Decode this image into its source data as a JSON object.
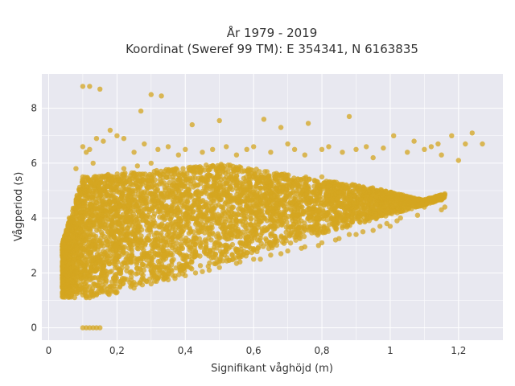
{
  "chart_data": {
    "type": "scatter",
    "title": [
      "År 1979 - 2019",
      "Koordinat (Sweref 99 TM): E 354341, N 6163835"
    ],
    "xlabel": "Signifikant våghöjd (m)",
    "ylabel": "Vågperiod (s)",
    "xlim": [
      -0.02,
      1.33
    ],
    "ylim": [
      -0.45,
      9.25
    ],
    "xticks": [
      0,
      0.2,
      0.4,
      0.6,
      0.8,
      1,
      1.2
    ],
    "xtick_labels": [
      "0",
      "0,2",
      "0,4",
      "0,6",
      "0,8",
      "1",
      "1,2"
    ],
    "yticks": [
      0,
      2,
      4,
      6,
      8
    ],
    "ytick_labels": [
      "0",
      "2",
      "4",
      "6",
      "8"
    ],
    "grid": true,
    "background": "#e8e8f0",
    "point_color": "#d4a520",
    "point_opacity": 0.75,
    "series": [
      {
        "x": [
          0.1,
          0.12,
          0.15,
          0.3,
          0.33,
          0.27,
          0.5,
          0.42,
          0.63,
          0.68,
          0.76,
          0.88,
          1.01,
          1.07,
          1.12,
          1.18,
          1.22,
          1.24,
          1.27,
          1.2,
          1.15,
          1.14,
          1.1,
          1.05,
          0.98,
          0.95,
          0.93,
          0.9,
          0.86,
          0.82,
          0.8,
          0.75,
          0.72,
          0.7,
          0.65,
          0.6,
          0.58,
          0.55,
          0.52,
          0.48,
          0.45,
          0.4,
          0.38,
          0.35,
          0.32,
          0.28,
          0.25,
          0.22,
          0.2,
          0.18,
          0.16,
          0.14,
          0.12,
          0.1,
          0.08,
          0.06,
          0.05,
          0.04,
          0.08,
          0.09,
          0.1,
          0.11,
          0.12,
          0.13,
          0.14,
          0.16,
          0.19,
          0.22,
          0.26,
          0.3,
          0.35,
          0.4,
          0.45,
          0.5,
          0.55,
          0.6,
          0.65,
          0.7,
          0.75,
          0.8,
          0.85,
          0.9,
          0.95,
          1.0,
          1.05,
          1.1,
          1.15,
          1.16,
          0.09,
          0.1,
          0.11,
          0.12,
          0.13,
          0.14,
          0.2,
          0.25,
          0.3,
          0.35,
          0.4,
          0.45,
          0.5,
          0.55,
          0.6,
          0.65,
          0.7,
          0.75,
          0.8,
          0.85,
          0.9,
          0.95,
          1.0,
          1.02,
          0.88,
          0.92,
          0.97,
          0.99,
          1.03,
          1.08,
          0.84,
          0.79,
          0.74,
          0.68,
          0.62,
          0.56,
          0.47,
          0.43,
          0.37,
          0.31,
          0.24,
          0.17,
          0.13,
          0.11,
          0.07,
          0.06
        ],
        "y": [
          8.8,
          8.8,
          8.7,
          8.5,
          8.45,
          7.9,
          7.55,
          7.4,
          7.6,
          7.3,
          7.45,
          7.7,
          7.0,
          6.8,
          6.6,
          7.0,
          6.7,
          7.1,
          6.7,
          6.1,
          6.3,
          6.7,
          6.5,
          6.4,
          6.55,
          6.2,
          6.6,
          6.5,
          6.4,
          6.6,
          6.5,
          6.3,
          6.5,
          6.7,
          6.4,
          6.6,
          6.5,
          6.3,
          6.6,
          6.5,
          6.4,
          6.5,
          6.3,
          6.6,
          6.5,
          6.7,
          6.4,
          6.9,
          7.0,
          7.2,
          6.8,
          6.9,
          6.5,
          6.6,
          5.8,
          4.0,
          3.4,
          1.5,
          3.0,
          4.5,
          5.5,
          6.4,
          5.0,
          6.0,
          5.5,
          5.0,
          5.5,
          5.8,
          5.9,
          6.0,
          5.7,
          5.5,
          5.4,
          5.6,
          5.8,
          5.5,
          5.2,
          5.4,
          5.3,
          5.5,
          5.2,
          5.1,
          5.0,
          4.8,
          4.6,
          4.4,
          4.3,
          4.4,
          1.3,
          1.2,
          1.1,
          1.1,
          1.15,
          1.2,
          1.3,
          1.45,
          1.6,
          1.75,
          1.9,
          2.05,
          2.2,
          2.35,
          2.5,
          2.65,
          2.8,
          2.95,
          3.1,
          3.25,
          3.4,
          3.55,
          3.7,
          3.9,
          3.4,
          3.5,
          3.7,
          3.8,
          4.0,
          4.1,
          3.2,
          3.0,
          2.9,
          2.7,
          2.5,
          2.4,
          2.1,
          2.0,
          1.8,
          1.7,
          1.5,
          1.3,
          1.2,
          1.15,
          1.4,
          2.0
        ],
        "zero_x": [
          0.1,
          0.11,
          0.12,
          0.13,
          0.14,
          0.15
        ],
        "zero_y": [
          0,
          0,
          0,
          0,
          0,
          0
        ]
      }
    ]
  }
}
